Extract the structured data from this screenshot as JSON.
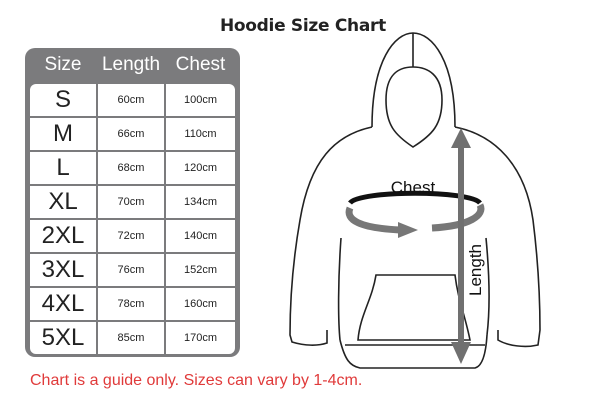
{
  "title": "Hoodie Size Chart",
  "table": {
    "headers": [
      "Size",
      "Length",
      "Chest"
    ],
    "rows": [
      [
        "S",
        "60cm",
        "100cm"
      ],
      [
        "M",
        "66cm",
        "110cm"
      ],
      [
        "L",
        "68cm",
        "120cm"
      ],
      [
        "XL",
        "70cm",
        "134cm"
      ],
      [
        "2XL",
        "72cm",
        "140cm"
      ],
      [
        "3XL",
        "76cm",
        "152cm"
      ],
      [
        "4XL",
        "78cm",
        "160cm"
      ],
      [
        "5XL",
        "85cm",
        "170cm"
      ]
    ]
  },
  "diagram": {
    "chest_label": "Chest",
    "length_label": "Length",
    "arrow_color": "#707070"
  },
  "note": "Chart is a guide only. Sizes can vary by 1-4cm.",
  "colors": {
    "table_bg": "#7b7b7d",
    "note": "#e03a3a"
  }
}
